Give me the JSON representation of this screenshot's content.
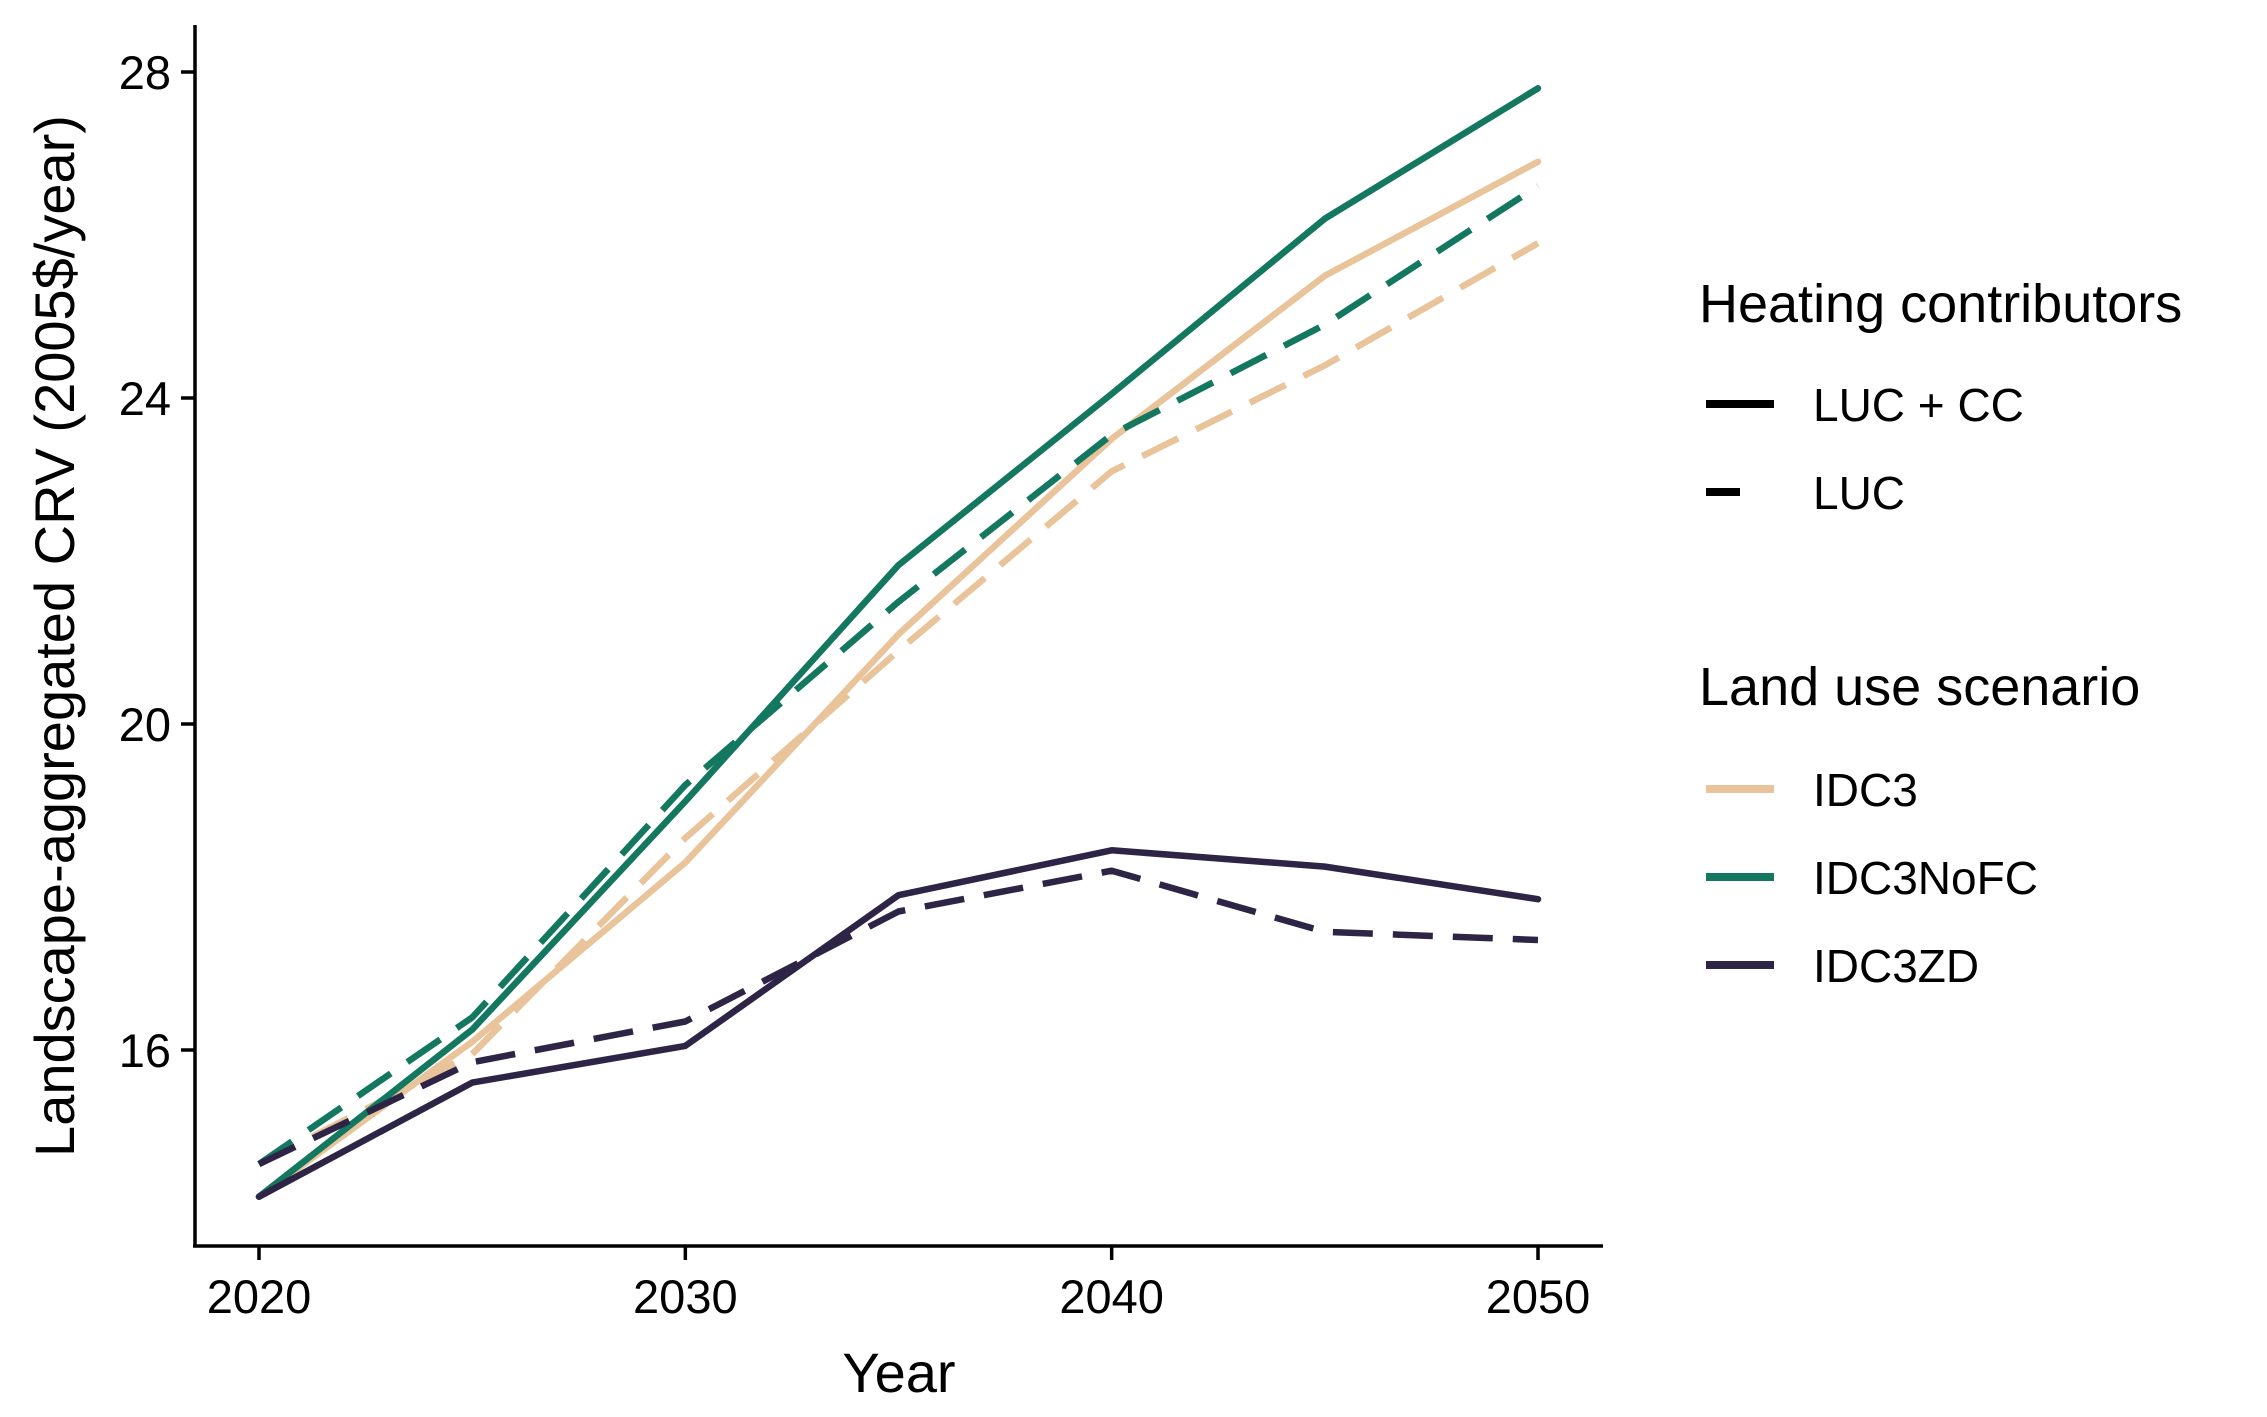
{
  "chart_data": {
    "type": "line",
    "title": "",
    "xlabel": "Year",
    "ylabel": "Landscape-aggregated CRV (2005$/year)",
    "xlim": [
      2018.5,
      2051.5
    ],
    "ylim": [
      13.55,
      28.5
    ],
    "xticks": [
      2020,
      2030,
      2040,
      2050
    ],
    "xtick_labels": [
      "2020",
      "2030",
      "2040",
      "2050"
    ],
    "yticks": [
      16,
      20,
      24,
      28
    ],
    "ytick_labels": [
      "16",
      "20",
      "24",
      "28"
    ],
    "grid": false,
    "legend_position": "right",
    "x": [
      2020,
      2025,
      2030,
      2035,
      2040,
      2045,
      2050
    ],
    "colors": {
      "IDC3": "#E9C399",
      "IDC3NoFC": "#14775F",
      "IDC3ZD": "#2E2446"
    },
    "legends": [
      {
        "title": "Heating contributors",
        "entries": [
          {
            "label": "LUC + CC",
            "linetype": "solid",
            "color": "#000000"
          },
          {
            "label": "LUC",
            "linetype": "dashed",
            "color": "#000000"
          }
        ]
      },
      {
        "title": "Land use scenario",
        "entries": [
          {
            "label": "IDC3",
            "linetype": "solid",
            "color": "#E9C399"
          },
          {
            "label": "IDC3NoFC",
            "linetype": "solid",
            "color": "#14775F"
          },
          {
            "label": "IDC3ZD",
            "linetype": "solid",
            "color": "#2E2446"
          }
        ]
      }
    ],
    "series": [
      {
        "scenario": "IDC3",
        "contributors": "LUC + CC",
        "linetype": "solid",
        "values": [
          14.2,
          16.1,
          18.3,
          21.1,
          23.5,
          25.5,
          26.9
        ]
      },
      {
        "scenario": "IDC3",
        "contributors": "LUC",
        "linetype": "dashed",
        "values": [
          14.6,
          15.95,
          18.6,
          20.9,
          23.1,
          24.4,
          25.9
        ]
      },
      {
        "scenario": "IDC3NoFC",
        "contributors": "LUC + CC",
        "linetype": "solid",
        "values": [
          14.2,
          16.25,
          19.05,
          21.95,
          24.05,
          26.2,
          27.8
        ]
      },
      {
        "scenario": "IDC3NoFC",
        "contributors": "LUC",
        "linetype": "dashed",
        "values": [
          14.6,
          16.4,
          19.25,
          21.5,
          23.55,
          24.9,
          26.6
        ]
      },
      {
        "scenario": "IDC3ZD",
        "contributors": "LUC + CC",
        "linetype": "solid",
        "values": [
          14.2,
          15.6,
          16.05,
          17.9,
          18.45,
          18.25,
          17.85
        ]
      },
      {
        "scenario": "IDC3ZD",
        "contributors": "LUC",
        "linetype": "dashed",
        "values": [
          14.6,
          15.85,
          16.35,
          17.7,
          18.2,
          17.45,
          17.35
        ]
      }
    ]
  }
}
